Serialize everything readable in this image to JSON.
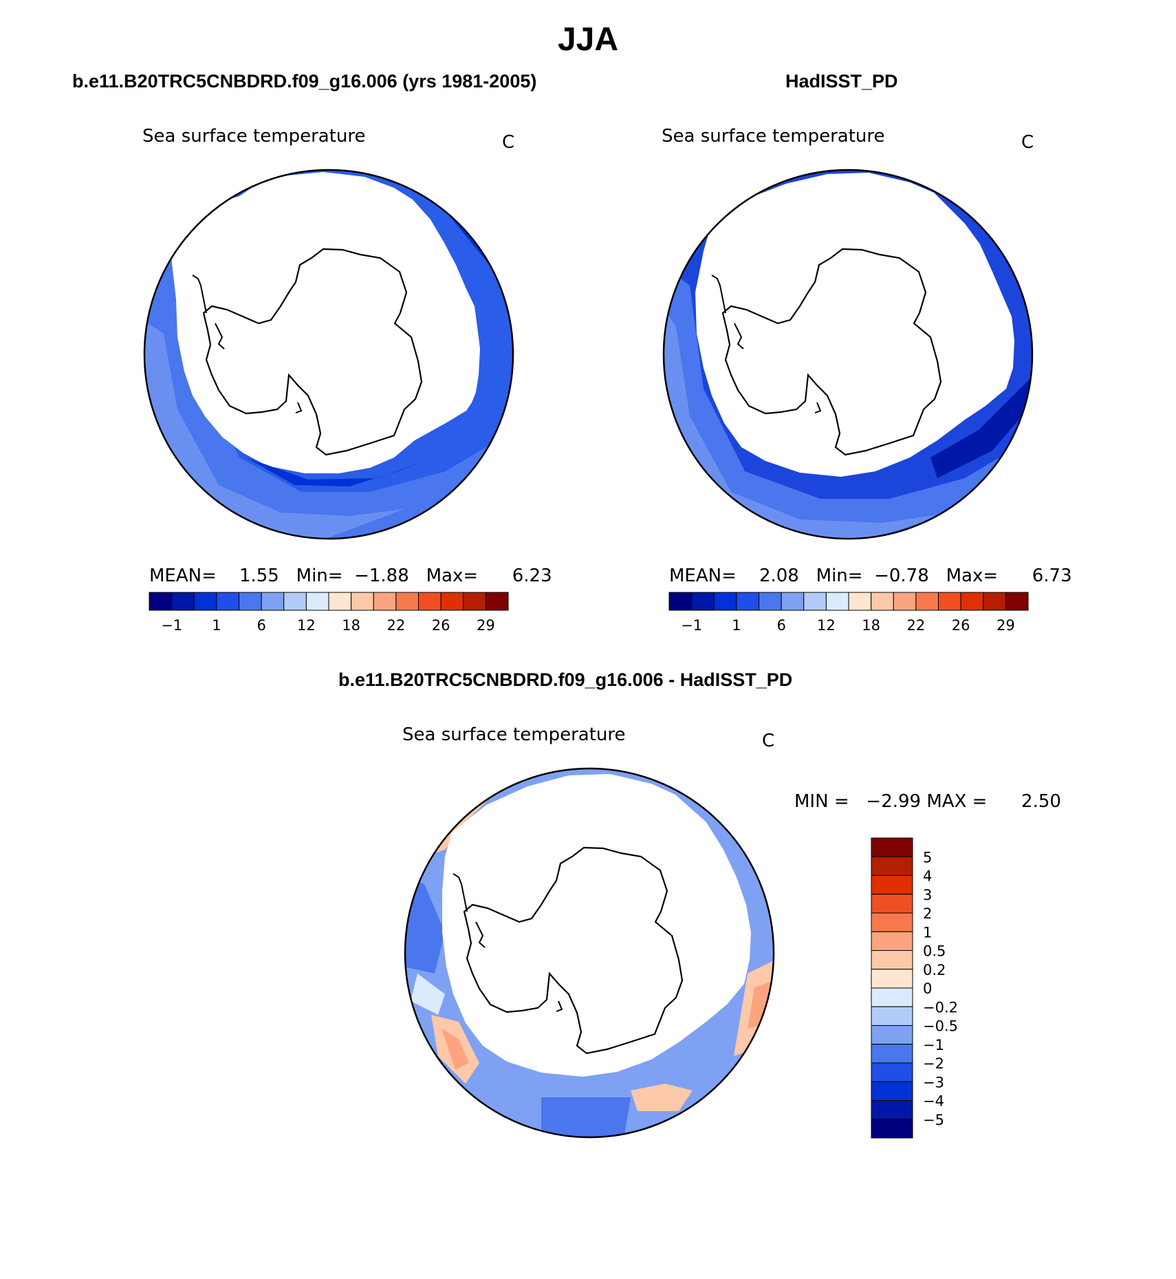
{
  "title": "JJA",
  "colors": {
    "abs_scale": [
      "#00007f",
      "#0018a8",
      "#0031d6",
      "#1f4fe8",
      "#4a76ee",
      "#7ea1f4",
      "#b2ccfa",
      "#dceafe",
      "#fee6d2",
      "#fdc9a8",
      "#fca47f",
      "#f77a4d",
      "#f04f22",
      "#e03000",
      "#b31f00",
      "#7f0000"
    ],
    "diff_scale": [
      "#00007f",
      "#0018a8",
      "#0031d6",
      "#1f4fe8",
      "#4a76ee",
      "#7ea1f4",
      "#b2ccfa",
      "#dceafe",
      "#fee6d2",
      "#fdc9a8",
      "#fca47f",
      "#f77a4d",
      "#f04f22",
      "#e03000",
      "#b31f00",
      "#7f0000"
    ],
    "ocean_model": "#2a5de8",
    "ocean_obs": "#1c45dc"
  },
  "panels": [
    {
      "id": "model",
      "title": "b.e11.B20TRC5CNBDRD.f09_g16.006 (yrs 1981-2005)",
      "variable": "Sea surface temperature",
      "units": "C",
      "stats": {
        "mean_label": "MEAN=",
        "mean": "1.55",
        "min_label": "Min=",
        "min": "−1.88",
        "max_label": "Max=",
        "max": "6.23"
      },
      "colorbar_ticks": [
        "−1",
        "1",
        "6",
        "12",
        "18",
        "22",
        "26",
        "29"
      ]
    },
    {
      "id": "obs",
      "title": "HadISST_PD",
      "variable": "Sea surface temperature",
      "units": "C",
      "stats": {
        "mean_label": "MEAN=",
        "mean": "2.08",
        "min_label": "Min=",
        "min": "−0.78",
        "max_label": "Max=",
        "max": "6.73"
      },
      "colorbar_ticks": [
        "−1",
        "1",
        "6",
        "12",
        "18",
        "22",
        "26",
        "29"
      ]
    }
  ],
  "difference": {
    "title": "b.e11.B20TRC5CNBDRD.f09_g16.006 - HadISST_PD",
    "variable": "Sea surface temperature",
    "units": "C",
    "stats": {
      "min_label": "MIN =",
      "min": "−2.99",
      "max_label": "MAX =",
      "max": "2.50"
    },
    "colorbar_ticks": [
      "5",
      "4",
      "3",
      "2",
      "1",
      "0.5",
      "0.2",
      "0",
      "−0.2",
      "−0.5",
      "−1",
      "−2",
      "−3",
      "−4",
      "−5"
    ]
  }
}
